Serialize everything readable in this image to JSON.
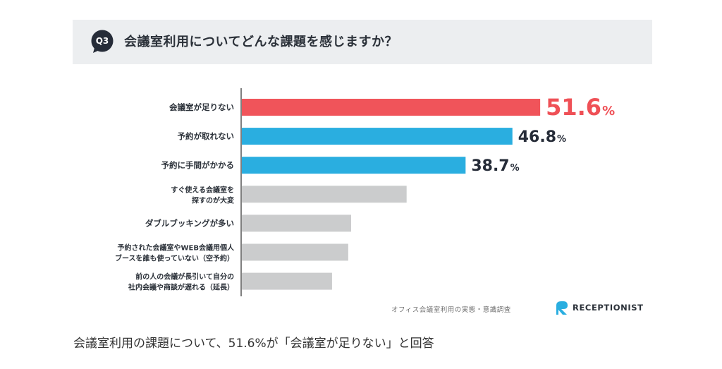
{
  "header": {
    "badge": "Q3",
    "question": "会議室利用についてどんな課題を感じますか？"
  },
  "chart_data": {
    "type": "bar",
    "orientation": "horizontal",
    "categories": [
      [
        "会議室が足りない"
      ],
      [
        "予約が取れない"
      ],
      [
        "予約に手間がかかる"
      ],
      [
        "すぐ使える会議室を",
        "探すのが大変"
      ],
      [
        "ダブルブッキングが多い"
      ],
      [
        "予約された会議室やWEB会議用個人",
        "ブースを誰も使っていない（空予約）"
      ],
      [
        "前の人の会議が長引いて自分の",
        "社内会議や商談が遅れる（延長）"
      ]
    ],
    "values": [
      51.6,
      46.8,
      38.7,
      28.5,
      18.9,
      18.4,
      15.6
    ],
    "value_labels": [
      "51.6",
      "46.8",
      "38.7",
      null,
      null,
      null,
      null
    ],
    "unit": "%",
    "bar_colors": [
      "#f0545a",
      "#2aaee0",
      "#2aaee0",
      "#cbcccd",
      "#cbcccd",
      "#cbcccd",
      "#cbcccd"
    ],
    "label_colors": [
      "#ef5056",
      "#262c38",
      "#262c38"
    ],
    "xlim": [
      0,
      60
    ],
    "grid": false,
    "legend": "none"
  },
  "footer": {
    "source": "オフィス会議室利用の実態・意識調査",
    "brand": "RECEPTIONIST"
  },
  "caption": "会議室利用の課題について、51.6%が「会議室が足りない」と回答",
  "colors": {
    "header_bg": "#eceef0",
    "badge": "#262c38",
    "brand_accent": "#2aaee0"
  }
}
